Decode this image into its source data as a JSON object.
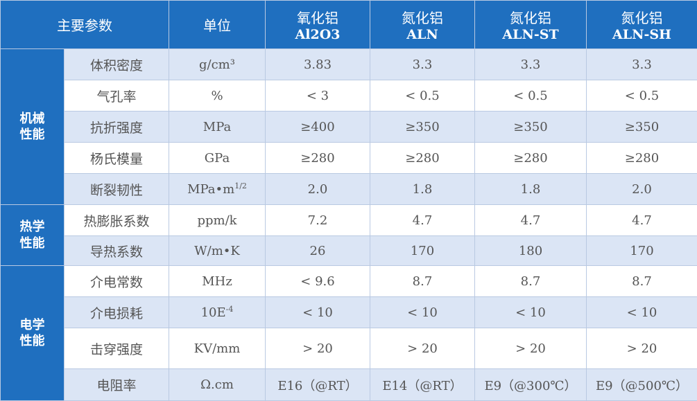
{
  "header": {
    "param": "主要参数",
    "unit": "单位",
    "materials": [
      {
        "name": "氧化铝",
        "sub": "Al2O3"
      },
      {
        "name": "氮化铝",
        "sub": "ALN"
      },
      {
        "name": "氮化铝",
        "sub": "ALN-ST"
      },
      {
        "name": "氮化铝",
        "sub": "ALN-SH"
      }
    ]
  },
  "groups": [
    {
      "label": "机械性能",
      "rows": [
        {
          "param": "体积密度",
          "unit": {
            "text": "g/cm³"
          },
          "values": [
            "3.83",
            "3.3",
            "3.3",
            "3.3"
          ]
        },
        {
          "param": "气孔率",
          "unit": {
            "text": "%"
          },
          "values": [
            "< 3",
            "< 0.5",
            "< 0.5",
            "< 0.5"
          ]
        },
        {
          "param": "抗折强度",
          "unit": {
            "text": "MPa"
          },
          "values": [
            "≥400",
            "≥350",
            "≥350",
            "≥350"
          ]
        },
        {
          "param": "杨氏模量",
          "unit": {
            "text": "GPa"
          },
          "values": [
            "≥280",
            "≥280",
            "≥280",
            "≥280"
          ]
        },
        {
          "param": "断裂韧性",
          "unit": {
            "text": "MPa•m",
            "sup": "1/2"
          },
          "values": [
            "2.0",
            "1.8",
            "1.8",
            "2.0"
          ]
        }
      ]
    },
    {
      "label": "热学性能",
      "rows": [
        {
          "param": "热膨胀系数",
          "unit": {
            "text": "ppm/k"
          },
          "values": [
            "7.2",
            "4.7",
            "4.7",
            "4.7"
          ]
        },
        {
          "param": "导热系数",
          "unit": {
            "text": "W/m•K"
          },
          "values": [
            "26",
            "170",
            "180",
            "170"
          ]
        }
      ]
    },
    {
      "label": "电学性能",
      "rows": [
        {
          "param": "介电常数",
          "unit": {
            "text": "MHz"
          },
          "values": [
            "< 9.6",
            "8.7",
            "8.7",
            "8.7"
          ]
        },
        {
          "param": "介电损耗",
          "unit": {
            "text": "10E",
            "sup": "-4"
          },
          "values": [
            "< 10",
            "< 10",
            "< 10",
            "< 10"
          ]
        },
        {
          "param": "击穿强度",
          "unit": {
            "text": "KV/mm"
          },
          "values": [
            "> 20",
            "> 20",
            "> 20",
            "> 20"
          ]
        },
        {
          "param": "电阻率",
          "unit": {
            "text": "Ω.cm"
          },
          "values": [
            "E16（@RT）",
            "E14（@RT）",
            "E9（@300℃）",
            "E9（@500℃）"
          ]
        }
      ]
    }
  ]
}
